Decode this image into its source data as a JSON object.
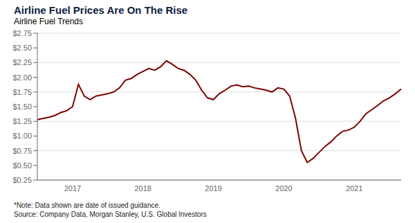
{
  "chart_data": {
    "type": "line",
    "title": "Airline Fuel Prices Are On The Rise",
    "subtitle": "Airline Fuel Trends",
    "annotations": [
      "*Note: Data shown are date of issued guidance.",
      "Source: Company Data, Morgan Stanley, U.S. Global Investors"
    ],
    "categories": [
      null,
      null,
      null,
      null,
      null,
      null,
      "2017",
      null,
      null,
      null,
      null,
      null,
      null,
      null,
      null,
      null,
      null,
      null,
      "2018",
      null,
      null,
      null,
      null,
      null,
      null,
      null,
      null,
      null,
      null,
      null,
      "2019",
      null,
      null,
      null,
      null,
      null,
      null,
      null,
      null,
      null,
      null,
      null,
      "2020",
      null,
      null,
      null,
      null,
      null,
      null,
      null,
      null,
      null,
      null,
      null,
      "2021",
      null,
      null,
      null,
      null,
      null,
      null,
      null,
      null
    ],
    "values": [
      1.28,
      1.3,
      1.32,
      1.35,
      1.4,
      1.43,
      1.5,
      1.88,
      1.68,
      1.62,
      1.68,
      1.7,
      1.72,
      1.75,
      1.82,
      1.95,
      1.98,
      2.05,
      2.1,
      2.15,
      2.12,
      2.18,
      2.28,
      2.22,
      2.15,
      2.12,
      2.05,
      1.95,
      1.78,
      1.65,
      1.62,
      1.72,
      1.78,
      1.85,
      1.87,
      1.84,
      1.85,
      1.82,
      1.8,
      1.78,
      1.75,
      1.82,
      1.8,
      1.68,
      1.3,
      0.75,
      0.55,
      0.62,
      0.72,
      0.82,
      0.9,
      1.0,
      1.08,
      1.1,
      1.15,
      1.25,
      1.38,
      1.45,
      1.52,
      1.6,
      1.65,
      1.72,
      1.8
    ],
    "color": "#7b0000",
    "ylim": [
      0.25,
      2.75
    ],
    "yticks": [
      {
        "value": 0.25,
        "label": "$0.25"
      },
      {
        "value": 0.5,
        "label": "$0.50"
      },
      {
        "value": 0.75,
        "label": "$0.75"
      },
      {
        "value": 1.0,
        "label": "$1.00"
      },
      {
        "value": 1.25,
        "label": "$1.25"
      },
      {
        "value": 1.5,
        "label": "$1.50"
      },
      {
        "value": 1.75,
        "label": "$1.75"
      },
      {
        "value": 2.0,
        "label": "$2.00"
      },
      {
        "value": 2.25,
        "label": "$2.25"
      },
      {
        "value": 2.5,
        "label": "$2.50"
      },
      {
        "value": 2.75,
        "label": "$2.75"
      }
    ],
    "grid": true
  }
}
